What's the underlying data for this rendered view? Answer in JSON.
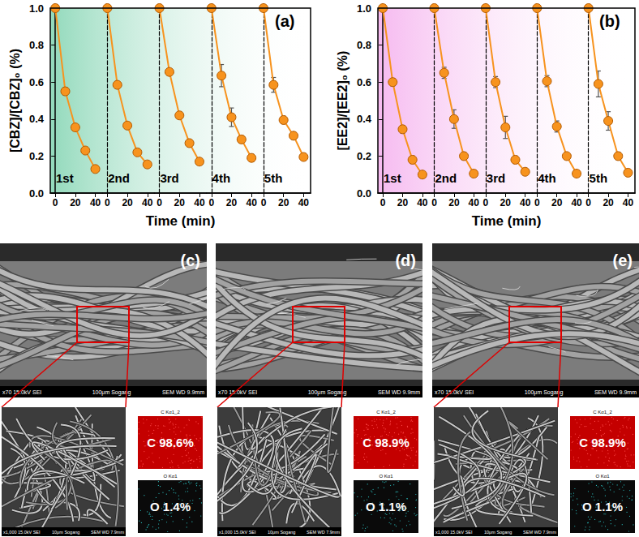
{
  "chart_data": [
    {
      "type": "line",
      "title": "(a)",
      "xlabel": "Time (min)",
      "ylabel": "[CBZ]/[CBZ]₀ (%)",
      "color": "#f7931e",
      "marker": "circle",
      "line_style": "solid",
      "x": [
        0,
        10,
        20,
        30,
        40
      ],
      "xlim": [
        -5,
        47
      ],
      "xticks": [
        0,
        20,
        40
      ],
      "ylim": [
        0,
        1
      ],
      "yticks": [
        {
          "value": 0,
          "label": "0.0"
        },
        {
          "value": 0.2,
          "label": "0.2"
        },
        {
          "value": 0.4,
          "label": "0.4"
        },
        {
          "value": 0.6,
          "label": "0.6"
        },
        {
          "value": 0.8,
          "label": "0.8"
        },
        {
          "value": 1,
          "label": "1.0"
        }
      ],
      "grid": false,
      "series": [
        {
          "name": "1st",
          "values": [
            1.0,
            0.55,
            0.355,
            0.23,
            0.13
          ],
          "errors": [
            0,
            0.02,
            0.015,
            0.015,
            0.01
          ]
        },
        {
          "name": "2nd",
          "values": [
            1.0,
            0.585,
            0.365,
            0.22,
            0.155
          ],
          "errors": [
            0,
            0.015,
            0.015,
            0.015,
            0.01
          ]
        },
        {
          "name": "3rd",
          "values": [
            1.0,
            0.655,
            0.42,
            0.27,
            0.17
          ],
          "errors": [
            0,
            0.015,
            0.015,
            0.015,
            0.01
          ]
        },
        {
          "name": "4th",
          "values": [
            1.0,
            0.635,
            0.41,
            0.29,
            0.19
          ],
          "errors": [
            0,
            0.06,
            0.05,
            0.02,
            0.02
          ]
        },
        {
          "name": "5th",
          "values": [
            1.0,
            0.585,
            0.395,
            0.31,
            0.195
          ],
          "errors": [
            0,
            0.04,
            0.02,
            0.02,
            0.01
          ]
        }
      ]
    },
    {
      "type": "line",
      "title": "(b)",
      "xlabel": "Time (min)",
      "ylabel": "[EE2]/[EE2]₀ (%)",
      "color": "#f7931e",
      "marker": "circle",
      "line_style": "solid",
      "x": [
        0,
        10,
        20,
        30,
        40
      ],
      "xlim": [
        -5,
        47
      ],
      "xticks": [
        0,
        20,
        40
      ],
      "ylim": [
        0,
        1
      ],
      "yticks": [
        {
          "value": 0,
          "label": "0.0"
        },
        {
          "value": 0.2,
          "label": "0.2"
        },
        {
          "value": 0.4,
          "label": "0.4"
        },
        {
          "value": 0.6,
          "label": "0.6"
        },
        {
          "value": 0.8,
          "label": "0.8"
        },
        {
          "value": 1,
          "label": "1.0"
        }
      ],
      "grid": false,
      "series": [
        {
          "name": "1st",
          "values": [
            1.0,
            0.6,
            0.345,
            0.18,
            0.1
          ],
          "errors": [
            0,
            0.02,
            0.02,
            0.02,
            0.01
          ]
        },
        {
          "name": "2nd",
          "values": [
            1.0,
            0.65,
            0.4,
            0.2,
            0.105
          ],
          "errors": [
            0,
            0.03,
            0.05,
            0.02,
            0.01
          ]
        },
        {
          "name": "3rd",
          "values": [
            1.0,
            0.6,
            0.355,
            0.18,
            0.115
          ],
          "errors": [
            0,
            0.03,
            0.06,
            0.02,
            0.01
          ]
        },
        {
          "name": "4th",
          "values": [
            1.0,
            0.605,
            0.36,
            0.2,
            0.105
          ],
          "errors": [
            0,
            0.03,
            0.03,
            0.01,
            0.01
          ]
        },
        {
          "name": "5th",
          "values": [
            1.0,
            0.59,
            0.39,
            0.2,
            0.11
          ],
          "errors": [
            0,
            0.07,
            0.05,
            0.02,
            0.01
          ]
        }
      ]
    }
  ],
  "images": [
    {
      "label": "(c)",
      "overview_bar": [
        "x70 15.0kV SEI",
        "100μm Sogang",
        "SEM WD 9.9mm"
      ],
      "detail_bar": [
        "x1,000 15.0kV SEI",
        "10μm Sogang",
        "SEM WD 7.9mm"
      ],
      "eds": [
        {
          "map": "C Kα1_2",
          "text": "C 98.6%"
        },
        {
          "map": "O Kα1",
          "text": "O 1.4%"
        }
      ]
    },
    {
      "label": "(d)",
      "overview_bar": [
        "x70 15.0kV SEI",
        "100μm Sogang",
        "SEM WD 9.9mm"
      ],
      "detail_bar": [
        "x1,000 15.0kV SEI",
        "10μm Sogang",
        "SEM WD 7.9mm"
      ],
      "eds": [
        {
          "map": "C Kα1_2",
          "text": "C 98.9%"
        },
        {
          "map": "O Kα1",
          "text": "O 1.1%"
        }
      ]
    },
    {
      "label": "(e)",
      "overview_bar": [
        "x70 15.0kV SEI",
        "100μm Sogang",
        "SEM WD 9.9mm"
      ],
      "detail_bar": [
        "x1,000 15.0kV SEI",
        "10μm Sogang",
        "SEM WD 7.9mm"
      ],
      "eds": [
        {
          "map": "C Kα1_2",
          "text": "C 98.9%"
        },
        {
          "map": "O Kα1",
          "text": "O 1.1%"
        }
      ]
    }
  ]
}
